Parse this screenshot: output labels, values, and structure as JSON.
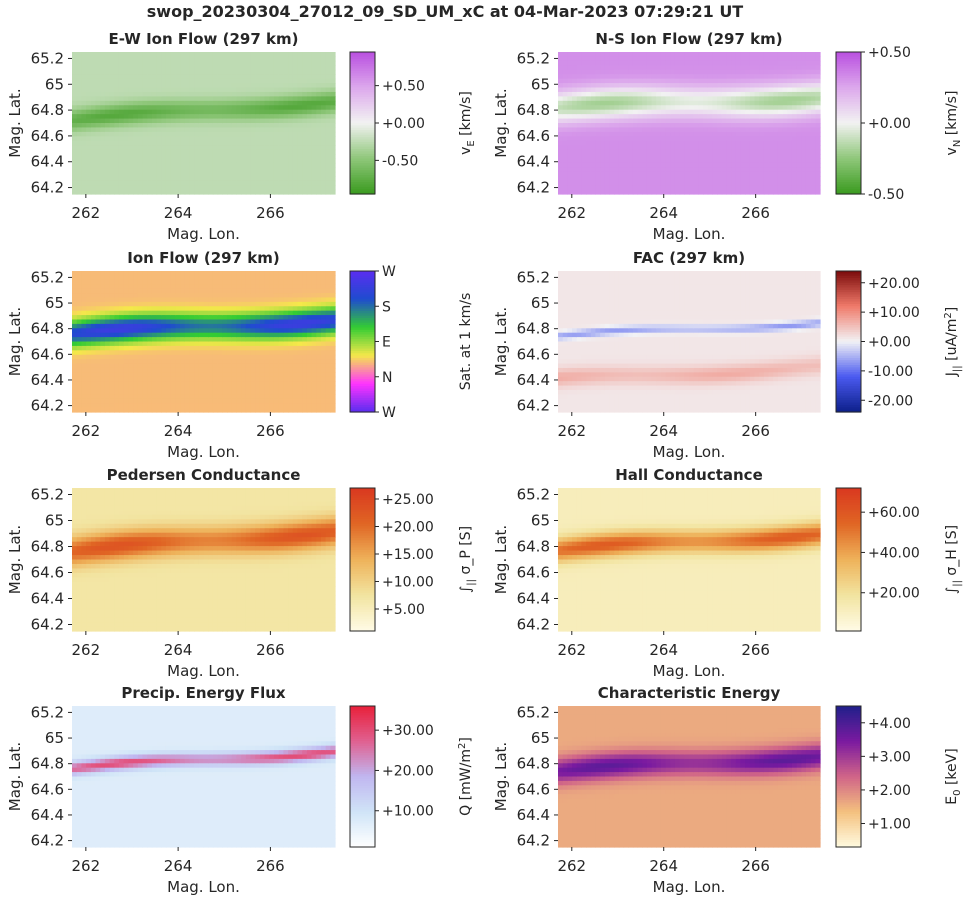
{
  "figure": {
    "title": "swop_20230304_27012_09_SD_UM_xC at 04-Mar-2023 07:29:21 UT"
  },
  "colors": {
    "text": "#262626",
    "axes": "#262626"
  },
  "chart_data": [
    {
      "type": "heatmap",
      "id": "ew",
      "title": "E-W Ion Flow (297 km)",
      "xlabel": "Mag. Lon.",
      "ylabel": "Mag. Lat.",
      "xticks": [
        262,
        264,
        266
      ],
      "yticks": [
        "64.2",
        "64.4",
        "64.6",
        "64.8",
        "65",
        "65.2"
      ],
      "xlim": [
        261.7,
        267.4
      ],
      "ylim": [
        64.15,
        65.25
      ],
      "colormap": "green-white-purple",
      "colorbar": {
        "label": "v_E [km/s]",
        "ticks": [
          "-0.50",
          "+0.00",
          "+0.50"
        ],
        "tick_values": [
          -0.5,
          0.0,
          0.5
        ],
        "range": [
          -0.95,
          0.95
        ]
      },
      "field": {
        "ridges": [
          {
            "center_start": 64.72,
            "center_end": 64.87,
            "width": 0.08,
            "value": -0.8
          },
          {
            "center_start": 64.47,
            "center_end": 64.58,
            "width": 0.1,
            "value": -0.25
          }
        ],
        "background": -0.25
      }
    },
    {
      "type": "heatmap",
      "id": "ns",
      "title": "N-S Ion Flow (297 km)",
      "xlabel": "Mag. Lon.",
      "ylabel": "Mag. Lat.",
      "xticks": [
        262,
        264,
        266
      ],
      "yticks": [
        "64.2",
        "64.4",
        "64.6",
        "64.8",
        "65",
        "65.2"
      ],
      "xlim": [
        261.7,
        267.4
      ],
      "ylim": [
        64.15,
        65.25
      ],
      "colormap": "green-white-purple",
      "colorbar": {
        "label": "v_N [km/s]",
        "ticks": [
          "-0.50",
          "+0.00",
          "+0.50"
        ],
        "tick_values": [
          -0.5,
          0.0,
          0.5
        ],
        "range": [
          -0.5,
          0.5
        ]
      },
      "field": {
        "ridges": [
          {
            "center_start": 64.82,
            "center_end": 64.9,
            "width": 0.12,
            "value": -0.2
          }
        ],
        "background": 0.32
      }
    },
    {
      "type": "heatmap",
      "id": "flow",
      "title": "Ion Flow (297 km)",
      "xlabel": "Mag. Lon.",
      "ylabel": "Mag. Lat.",
      "xticks": [
        262,
        264,
        266
      ],
      "yticks": [
        "64.2",
        "64.4",
        "64.6",
        "64.8",
        "65",
        "65.2"
      ],
      "xlim": [
        261.7,
        267.4
      ],
      "ylim": [
        64.15,
        65.25
      ],
      "colormap": "direction-wheel",
      "colorbar": {
        "label": "Sat. at 1 km/s",
        "ticks": [
          "W",
          "N",
          "E",
          "S",
          "W"
        ],
        "tick_values": [
          0,
          0.25,
          0.5,
          0.75,
          1
        ]
      },
      "field": {
        "ridges": [
          {
            "center_start": 64.76,
            "center_end": 64.87,
            "width": 0.1,
            "value": 0.9
          }
        ],
        "background": 0.35
      }
    },
    {
      "type": "heatmap",
      "id": "fac",
      "title": "FAC (297 km)",
      "xlabel": "Mag. Lon.",
      "ylabel": "Mag. Lat.",
      "xticks": [
        262,
        264,
        266
      ],
      "yticks": [
        "64.2",
        "64.4",
        "64.6",
        "64.8",
        "65",
        "65.2"
      ],
      "xlim": [
        261.7,
        267.4
      ],
      "ylim": [
        64.15,
        65.25
      ],
      "colormap": "blue-white-red",
      "colorbar": {
        "label": "J_|| [uA/m^2]",
        "ticks": [
          "-20.00",
          "-10.00",
          "+0.00",
          "+10.00",
          "+20.00"
        ],
        "tick_values": [
          -20,
          -10,
          0,
          10,
          20
        ],
        "range": [
          -24,
          24
        ]
      },
      "field": {
        "ridges": [
          {
            "center_start": 64.74,
            "center_end": 64.85,
            "width": 0.03,
            "value": -7
          },
          {
            "center_start": 64.4,
            "center_end": 64.5,
            "width": 0.07,
            "value": 7
          }
        ],
        "background": 1.2
      }
    },
    {
      "type": "heatmap",
      "id": "ped",
      "title": "Pedersen Conductance",
      "xlabel": "Mag. Lon.",
      "ylabel": "Mag. Lat.",
      "xticks": [
        262,
        264,
        266
      ],
      "yticks": [
        "64.2",
        "64.4",
        "64.6",
        "64.8",
        "65",
        "65.2"
      ],
      "xlim": [
        261.7,
        267.4
      ],
      "ylim": [
        64.15,
        65.25
      ],
      "colormap": "ylorrd",
      "colorbar": {
        "label": "∫_|| σ_P [S]",
        "ticks": [
          "+5.00",
          "+10.00",
          "+15.00",
          "+20.00",
          "+25.00"
        ],
        "tick_values": [
          5,
          10,
          15,
          20,
          25
        ],
        "range": [
          1,
          27
        ]
      },
      "field": {
        "ridges": [
          {
            "center_start": 64.76,
            "center_end": 64.92,
            "width": 0.11,
            "value": 23
          }
        ],
        "background": 7
      }
    },
    {
      "type": "heatmap",
      "id": "hall",
      "title": "Hall Conductance",
      "xlabel": "Mag. Lon.",
      "ylabel": "Mag. Lat.",
      "xticks": [
        262,
        264,
        266
      ],
      "yticks": [
        "64.2",
        "64.4",
        "64.6",
        "64.8",
        "65",
        "65.2"
      ],
      "xlim": [
        261.7,
        267.4
      ],
      "ylim": [
        64.15,
        65.25
      ],
      "colormap": "ylorrd",
      "colorbar": {
        "label": "∫_|| σ_H [S]",
        "ticks": [
          "+20.00",
          "+40.00",
          "+60.00"
        ],
        "tick_values": [
          20,
          40,
          60
        ],
        "range": [
          1,
          72
        ]
      },
      "field": {
        "ridges": [
          {
            "center_start": 64.77,
            "center_end": 64.9,
            "width": 0.09,
            "value": 58
          }
        ],
        "background": 12
      }
    },
    {
      "type": "heatmap",
      "id": "q",
      "title": "Precip. Energy Flux",
      "xlabel": "Mag. Lon.",
      "ylabel": "Mag. Lat.",
      "xticks": [
        262,
        264,
        266
      ],
      "yticks": [
        "64.2",
        "64.4",
        "64.6",
        "64.8",
        "65",
        "65.2"
      ],
      "xlim": [
        261.7,
        267.4
      ],
      "ylim": [
        64.15,
        65.25
      ],
      "colormap": "white-blue-red",
      "colorbar": {
        "label": "Q [mW/m^2]",
        "ticks": [
          "+10.00",
          "+20.00",
          "+30.00"
        ],
        "tick_values": [
          10,
          20,
          30
        ],
        "range": [
          1,
          36
        ]
      },
      "field": {
        "ridges": [
          {
            "center_start": 64.76,
            "center_end": 64.9,
            "width": 0.05,
            "value": 30
          }
        ],
        "background": 7
      }
    },
    {
      "type": "heatmap",
      "id": "e0",
      "title": "Characteristic Energy",
      "xlabel": "Mag. Lon.",
      "ylabel": "Mag. Lat.",
      "xticks": [
        262,
        264,
        266
      ],
      "yticks": [
        "64.2",
        "64.4",
        "64.6",
        "64.8",
        "65",
        "65.2"
      ],
      "xlim": [
        261.7,
        267.4
      ],
      "ylim": [
        64.15,
        65.25
      ],
      "colormap": "cream-orange-magenta-blue",
      "colorbar": {
        "label": "E_0 [keV]",
        "ticks": [
          "+1.00",
          "+2.00",
          "+3.00",
          "+4.00"
        ],
        "tick_values": [
          1,
          2,
          3,
          4
        ],
        "range": [
          0.3,
          4.5
        ]
      },
      "field": {
        "ridges": [
          {
            "center_start": 64.74,
            "center_end": 64.86,
            "width": 0.1,
            "value": 3.8
          }
        ],
        "background": 1.6
      }
    }
  ]
}
